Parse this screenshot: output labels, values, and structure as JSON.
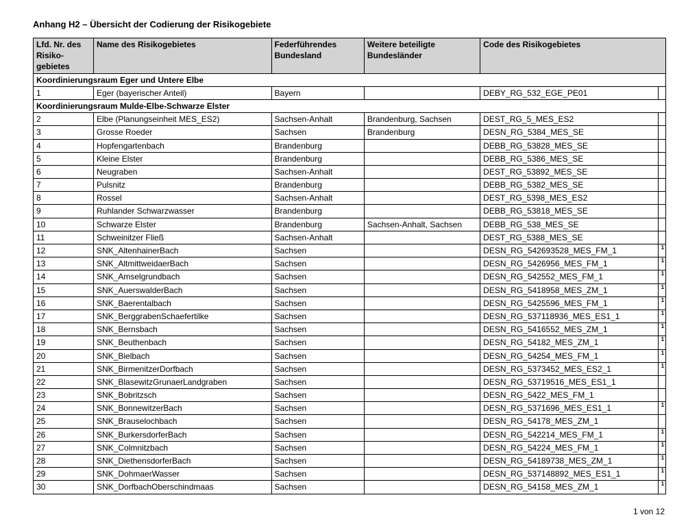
{
  "title": "Anhang H2 – Übersicht der Codierung der Risikogebiete",
  "columns": {
    "nr": "Lfd. Nr. des Risiko-gebietes",
    "name": "Name des Risikogebietes",
    "fed": "Federführendes Bundesland",
    "bet": "Weitere beteiligte Bundesländer",
    "code": "Code des Risikogebietes"
  },
  "sections": [
    {
      "heading": "Koordinierungsraum Eger und Untere Elbe",
      "rows": [
        {
          "nr": "1",
          "name": "Eger (bayerischer Anteil)",
          "fed": "Bayern",
          "bet": "",
          "code": "DEBY_RG_532_EGE_PE01",
          "fn": ""
        }
      ]
    },
    {
      "heading": "Koordinierungsraum Mulde-Elbe-Schwarze Elster",
      "rows": [
        {
          "nr": "2",
          "name": "Elbe (Planungseinheit MES_ES2)",
          "fed": "Sachsen-Anhalt",
          "bet": "Brandenburg, Sachsen",
          "code": "DEST_RG_5_MES_ES2",
          "fn": ""
        },
        {
          "nr": "3",
          "name": "Grosse Roeder",
          "fed": "Sachsen",
          "bet": "Brandenburg",
          "code": "DESN_RG_5384_MES_SE",
          "fn": ""
        },
        {
          "nr": "4",
          "name": "Hopfengartenbach",
          "fed": "Brandenburg",
          "bet": "",
          "code": "DEBB_RG_53828_MES_SE",
          "fn": ""
        },
        {
          "nr": "5",
          "name": "Kleine Elster",
          "fed": "Brandenburg",
          "bet": "",
          "code": "DEBB_RG_5386_MES_SE",
          "fn": ""
        },
        {
          "nr": "6",
          "name": "Neugraben",
          "fed": "Sachsen-Anhalt",
          "bet": "",
          "code": "DEST_RG_53892_MES_SE",
          "fn": ""
        },
        {
          "nr": "7",
          "name": "Pulsnitz",
          "fed": "Brandenburg",
          "bet": "",
          "code": "DEBB_RG_5382_MES_SE",
          "fn": ""
        },
        {
          "nr": "8",
          "name": "Rossel",
          "fed": "Sachsen-Anhalt",
          "bet": "",
          "code": "DEST_RG_5398_MES_ES2",
          "fn": ""
        },
        {
          "nr": "9",
          "name": "Ruhlander Schwarzwasser",
          "fed": "Brandenburg",
          "bet": "",
          "code": "DEBB_RG_53818_MES_SE",
          "fn": ""
        },
        {
          "nr": "10",
          "name": "Schwarze Elster",
          "fed": "Brandenburg",
          "bet": "Sachsen-Anhalt, Sachsen",
          "code": "DEBB_RG_538_MES_SE",
          "fn": ""
        },
        {
          "nr": "11",
          "name": "Schweinitzer Fließ",
          "fed": "Sachsen-Anhalt",
          "bet": "",
          "code": "DEST_RG_5388_MES_SE",
          "fn": ""
        },
        {
          "nr": "12",
          "name": "SNK_AltenhainerBach",
          "fed": "Sachsen",
          "bet": "",
          "code": "DESN_RG_542693528_MES_FM_1",
          "fn": "1"
        },
        {
          "nr": "13",
          "name": "SNK_AltmittweidaerBach",
          "fed": "Sachsen",
          "bet": "",
          "code": "DESN_RG_5426956_MES_FM_1",
          "fn": "1"
        },
        {
          "nr": "14",
          "name": "SNK_Amselgrundbach",
          "fed": "Sachsen",
          "bet": "",
          "code": "DESN_RG_542552_MES_FM_1",
          "fn": "1"
        },
        {
          "nr": "15",
          "name": "SNK_AuerswalderBach",
          "fed": "Sachsen",
          "bet": "",
          "code": "DESN_RG_5418958_MES_ZM_1",
          "fn": "1"
        },
        {
          "nr": "16",
          "name": "SNK_Baerentalbach",
          "fed": "Sachsen",
          "bet": "",
          "code": "DESN_RG_5425596_MES_FM_1",
          "fn": "1"
        },
        {
          "nr": "17",
          "name": "SNK_BerggrabenSchaefertilke",
          "fed": "Sachsen",
          "bet": "",
          "code": "DESN_RG_537118936_MES_ES1_1",
          "fn": "1"
        },
        {
          "nr": "18",
          "name": "SNK_Bernsbach",
          "fed": "Sachsen",
          "bet": "",
          "code": "DESN_RG_5416552_MES_ZM_1",
          "fn": "1"
        },
        {
          "nr": "19",
          "name": "SNK_Beuthenbach",
          "fed": "Sachsen",
          "bet": "",
          "code": "DESN_RG_54182_MES_ZM_1",
          "fn": "1"
        },
        {
          "nr": "20",
          "name": "SNK_Bielbach",
          "fed": "Sachsen",
          "bet": "",
          "code": "DESN_RG_54254_MES_FM_1",
          "fn": "1"
        },
        {
          "nr": "21",
          "name": "SNK_BirmenitzerDorfbach",
          "fed": "Sachsen",
          "bet": "",
          "code": "DESN_RG_5373452_MES_ES2_1",
          "fn": "1"
        },
        {
          "nr": "22",
          "name": "SNK_BlasewitzGrunaerLandgraben",
          "fed": "Sachsen",
          "bet": "",
          "code": "DESN_RG_53719516_MES_ES1_1",
          "fn": ""
        },
        {
          "nr": "23",
          "name": "SNK_Bobritzsch",
          "fed": "Sachsen",
          "bet": "",
          "code": "DESN_RG_5422_MES_FM_1",
          "fn": ""
        },
        {
          "nr": "24",
          "name": "SNK_BonnewitzerBach",
          "fed": "Sachsen",
          "bet": "",
          "code": "DESN_RG_5371696_MES_ES1_1",
          "fn": "1"
        },
        {
          "nr": "25",
          "name": "SNK_Brauselochbach",
          "fed": "Sachsen",
          "bet": "",
          "code": "DESN_RG_54178_MES_ZM_1",
          "fn": ""
        },
        {
          "nr": "26",
          "name": "SNK_BurkersdorferBach",
          "fed": "Sachsen",
          "bet": "",
          "code": "DESN_RG_542214_MES_FM_1",
          "fn": "1"
        },
        {
          "nr": "27",
          "name": "SNK_Colmnitzbach",
          "fed": "Sachsen",
          "bet": "",
          "code": "DESN_RG_54224_MES_FM_1",
          "fn": "1"
        },
        {
          "nr": "28",
          "name": "SNK_DiethensdorferBach",
          "fed": "Sachsen",
          "bet": "",
          "code": "DESN_RG_54189738_MES_ZM_1",
          "fn": "1"
        },
        {
          "nr": "29",
          "name": "SNK_DohmaerWasser",
          "fed": "Sachsen",
          "bet": "",
          "code": "DESN_RG_537148892_MES_ES1_1",
          "fn": "1"
        },
        {
          "nr": "30",
          "name": "SNK_DorfbachOberschindmaas",
          "fed": "Sachsen",
          "bet": "",
          "code": "DESN_RG_54158_MES_ZM_1",
          "fn": "1"
        }
      ]
    }
  ],
  "footer": "1 von 12"
}
